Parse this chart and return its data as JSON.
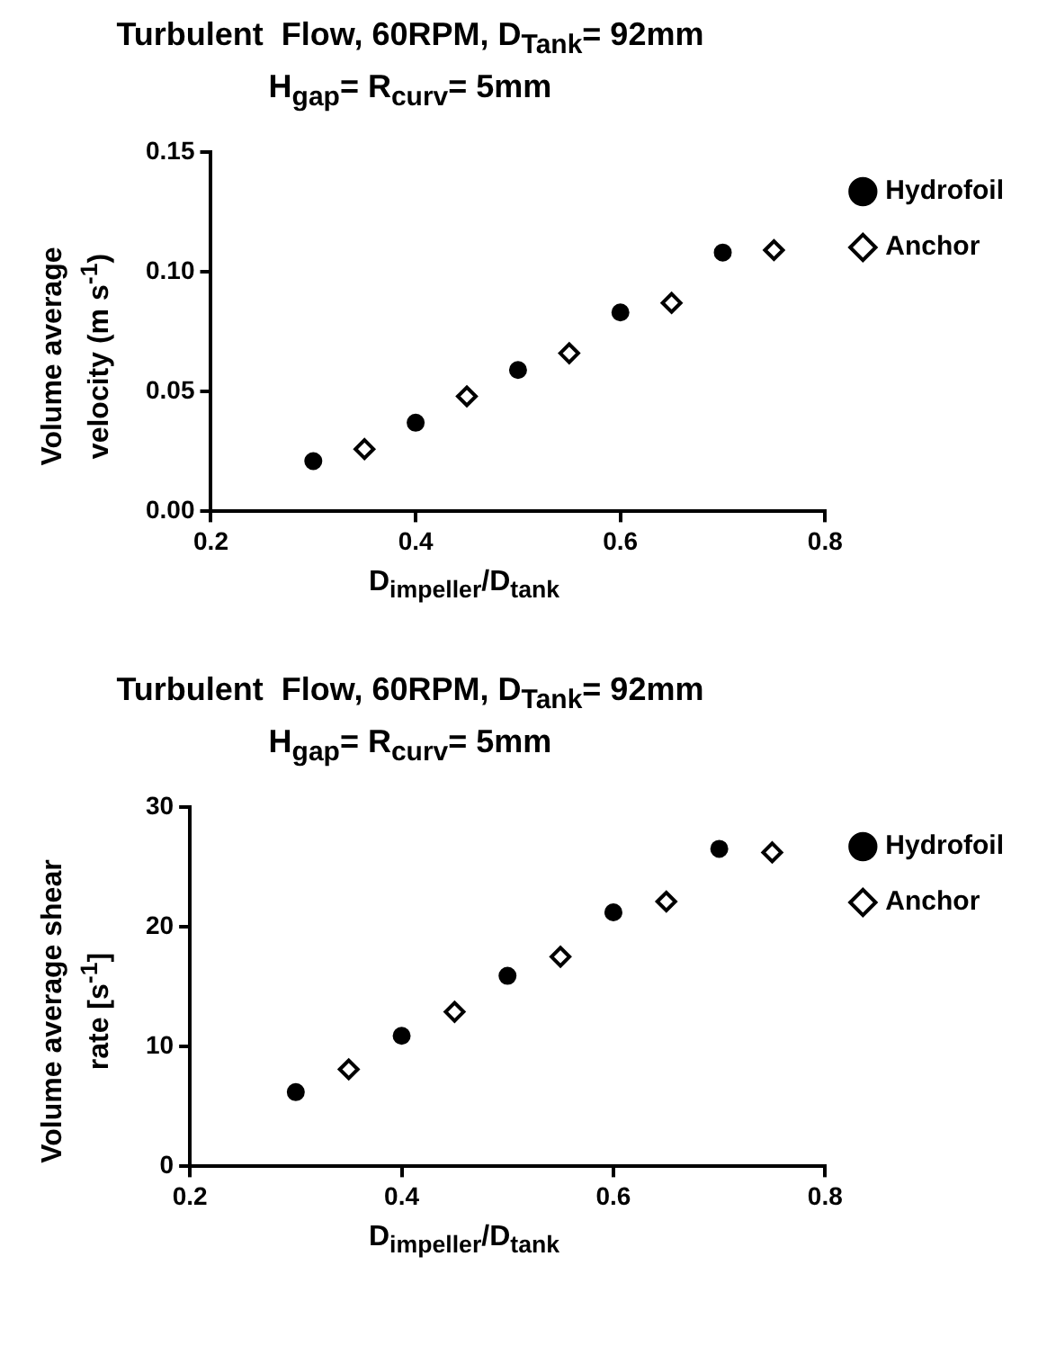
{
  "chart_data": [
    {
      "type": "scatter",
      "title": "Turbulent  Flow, 60RPM, D$_{Tank}$= 92mm",
      "subtitle": "H$_{gap}$= R$_{curv}$= 5mm",
      "xlabel": "D$_{impeller}$/D$_{tank}$",
      "ylabel": "Volume average velocity (m s$^{-1}$)",
      "xlim": [
        0.2,
        0.8
      ],
      "xticks": [
        {
          "value": 0.2,
          "label": "0.2"
        },
        {
          "value": 0.4,
          "label": "0.4"
        },
        {
          "value": 0.6,
          "label": "0.6"
        },
        {
          "value": 0.8,
          "label": "0.8"
        }
      ],
      "ylim": [
        0,
        0.15
      ],
      "yticks": [
        {
          "value": 0,
          "label": "0.00"
        },
        {
          "value": 0.05,
          "label": "0.05"
        },
        {
          "value": 0.1,
          "label": "0.10"
        },
        {
          "value": 0.15,
          "label": "0.15"
        }
      ],
      "grid": false,
      "legend": "top right",
      "series": [
        {
          "name": "Hydrofoil",
          "color": "#000000",
          "marker": "circle",
          "x": [
            0.3,
            0.4,
            0.5,
            0.6,
            0.7
          ],
          "values": [
            0.021,
            0.037,
            0.059,
            0.083,
            0.108
          ]
        },
        {
          "name": "Anchor",
          "color": "#000000",
          "marker": "diamond",
          "x": [
            0.35,
            0.45,
            0.55,
            0.65,
            0.75
          ],
          "values": [
            0.026,
            0.048,
            0.066,
            0.087,
            0.109
          ]
        }
      ]
    },
    {
      "type": "scatter",
      "title": "Turbulent  Flow, 60RPM, D$_{Tank}$= 92mm",
      "subtitle": "H$_{gap}$= R$_{curv}$= 5mm",
      "xlabel": "D$_{impeller}$/D$_{tank}$",
      "ylabel": "Volume average shear rate [s$^{-1}$]",
      "xlim": [
        0.2,
        0.8
      ],
      "xticks": [
        {
          "value": 0.2,
          "label": "0.2"
        },
        {
          "value": 0.4,
          "label": "0.4"
        },
        {
          "value": 0.6,
          "label": "0.6"
        },
        {
          "value": 0.8,
          "label": "0.8"
        }
      ],
      "ylim": [
        0,
        30
      ],
      "yticks": [
        0,
        10,
        20,
        30
      ],
      "grid": false,
      "legend": "top right",
      "series": [
        {
          "name": "Hydrofoil",
          "color": "#000000",
          "marker": "circle",
          "x": [
            0.3,
            0.4,
            0.5,
            0.6,
            0.7
          ],
          "values": [
            6.2,
            10.9,
            15.9,
            21.2,
            26.5
          ]
        },
        {
          "name": "Anchor",
          "color": "#000000",
          "marker": "diamond",
          "x": [
            0.35,
            0.45,
            0.55,
            0.65,
            0.75
          ],
          "values": [
            8.1,
            12.9,
            17.5,
            22.1,
            26.2
          ]
        }
      ]
    }
  ]
}
